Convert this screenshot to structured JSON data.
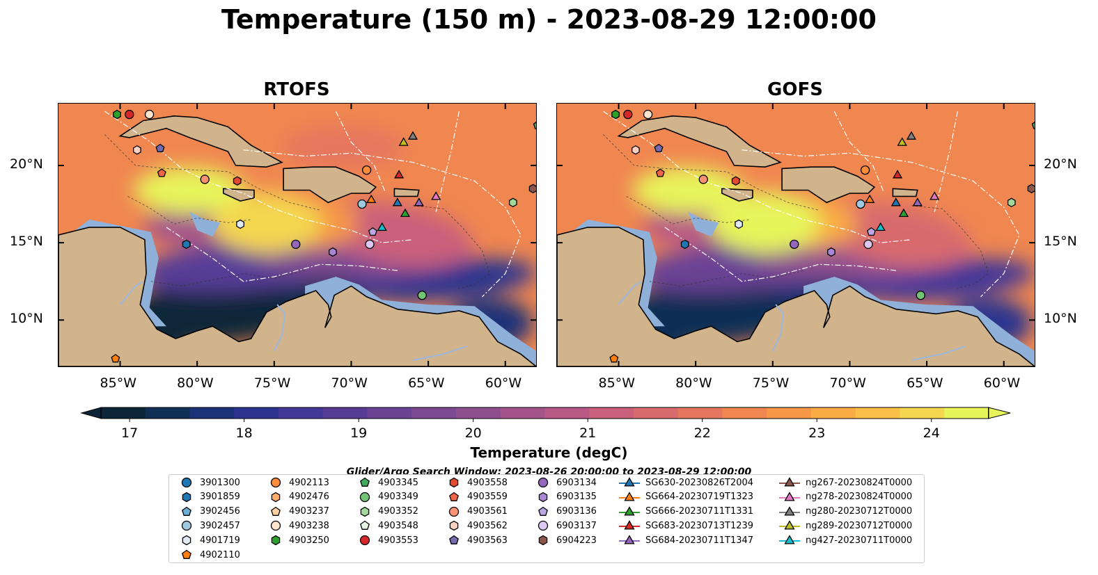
{
  "title": "Temperature (150 m) - 2023-08-29 12:00:00",
  "panels": [
    {
      "title": "RTOFS"
    },
    {
      "title": "GOFS"
    }
  ],
  "axes": {
    "lon_ticks": [
      "85°W",
      "80°W",
      "75°W",
      "70°W",
      "65°W",
      "60°W"
    ],
    "lat_ticks": [
      "20°N",
      "15°N",
      "10°N"
    ],
    "lon_values": [
      -85,
      -80,
      -75,
      -70,
      -65,
      -60
    ],
    "lat_values": [
      20,
      15,
      10
    ],
    "lon_range": [
      -89,
      -58
    ],
    "lat_range": [
      7,
      24
    ]
  },
  "colorbar": {
    "label": "Temperature (degC)",
    "ticks": [
      "17",
      "18",
      "19",
      "20",
      "21",
      "22",
      "23",
      "24"
    ],
    "tick_values": [
      17,
      18,
      19,
      20,
      21,
      22,
      23,
      24
    ],
    "range": [
      16.75,
      24.5
    ],
    "extend": "both",
    "colors": [
      "#0c2638",
      "#102f55",
      "#1c3278",
      "#2c3490",
      "#433898",
      "#573c97",
      "#6a4395",
      "#7c4993",
      "#8f4f8f",
      "#a4548b",
      "#b85a85",
      "#c9617c",
      "#d86b6e",
      "#e6775f",
      "#f08750",
      "#f69847",
      "#f9ab45",
      "#f9bf48",
      "#f4d650",
      "#e7f45a"
    ]
  },
  "search_window": "Glider/Argo Search Window: 2023-08-26 20:00:00 to 2023-08-29 12:00:00",
  "legend": [
    {
      "label": "3901300",
      "marker": "circle",
      "color": "#1f77b4"
    },
    {
      "label": "3901859",
      "marker": "hexagon",
      "color": "#1f77b4"
    },
    {
      "label": "3902456",
      "marker": "pentagon",
      "color": "#6baed6"
    },
    {
      "label": "3902457",
      "marker": "circle",
      "color": "#9ecae1"
    },
    {
      "label": "4901719",
      "marker": "hexagon",
      "color": "#deebf7"
    },
    {
      "label": "4902110",
      "marker": "pentagon",
      "color": "#ff7f0e"
    },
    {
      "label": "4902113",
      "marker": "circle",
      "color": "#fd8d3c"
    },
    {
      "label": "4902476",
      "marker": "hexagon",
      "color": "#fdae6b"
    },
    {
      "label": "4903237",
      "marker": "pentagon",
      "color": "#fdd0a2"
    },
    {
      "label": "4903238",
      "marker": "circle",
      "color": "#fee6ce"
    },
    {
      "label": "4903250",
      "marker": "hexagon",
      "color": "#2ca02c"
    },
    {
      "label": "4903345",
      "marker": "pentagon",
      "color": "#41ab5d"
    },
    {
      "label": "4903349",
      "marker": "circle",
      "color": "#74c476"
    },
    {
      "label": "4903352",
      "marker": "hexagon",
      "color": "#a1d99b"
    },
    {
      "label": "4903548",
      "marker": "pentagon",
      "color": "#e5f5e0"
    },
    {
      "label": "4903553",
      "marker": "circle",
      "color": "#d62728"
    },
    {
      "label": "4903558",
      "marker": "hexagon",
      "color": "#e34a33"
    },
    {
      "label": "4903559",
      "marker": "pentagon",
      "color": "#ef6548"
    },
    {
      "label": "4903561",
      "marker": "circle",
      "color": "#fc9272"
    },
    {
      "label": "4903562",
      "marker": "hexagon",
      "color": "#fdd0c2"
    },
    {
      "label": "4903563",
      "marker": "pentagon",
      "color": "#756bb1"
    },
    {
      "label": "6903134",
      "marker": "circle",
      "color": "#9467bd"
    },
    {
      "label": "6903135",
      "marker": "hexagon",
      "color": "#a987d6"
    },
    {
      "label": "6903136",
      "marker": "pentagon",
      "color": "#bca6e3"
    },
    {
      "label": "6903137",
      "marker": "circle",
      "color": "#dcc8f2"
    },
    {
      "label": "6904223",
      "marker": "hexagon",
      "color": "#8c564b"
    },
    {
      "label": "SG630-20230826T2004",
      "marker": "triangle-line",
      "color": "#1f77b4"
    },
    {
      "label": "SG664-20230719T1323",
      "marker": "triangle-line",
      "color": "#ff7f0e"
    },
    {
      "label": "SG666-20230711T1331",
      "marker": "triangle-line",
      "color": "#2ca02c"
    },
    {
      "label": "SG683-20230713T1239",
      "marker": "triangle-line",
      "color": "#d62728"
    },
    {
      "label": "SG684-20230711T1347",
      "marker": "triangle-line",
      "color": "#9467bd"
    },
    {
      "label": "ng267-20230824T0000",
      "marker": "triangle-line",
      "color": "#8c564b"
    },
    {
      "label": "ng278-20230824T0000",
      "marker": "triangle-line",
      "color": "#e377c2"
    },
    {
      "label": "ng280-20230712T0000",
      "marker": "triangle-line",
      "color": "#7f7f7f"
    },
    {
      "label": "ng289-20230712T0000",
      "marker": "triangle-line",
      "color": "#bcbd22"
    },
    {
      "label": "ng427-20230711T0000",
      "marker": "triangle-line",
      "color": "#17becf"
    }
  ],
  "platforms": [
    {
      "marker": "hexagon",
      "color": "#2ca02c",
      "lon": -85.2,
      "lat": 23.3
    },
    {
      "marker": "circle",
      "color": "#d62728",
      "lon": -84.4,
      "lat": 23.3
    },
    {
      "marker": "circle",
      "color": "#fee6ce",
      "lon": -83.1,
      "lat": 23.3
    },
    {
      "marker": "hexagon",
      "color": "#fdd0c2",
      "lon": -83.9,
      "lat": 21.0
    },
    {
      "marker": "pentagon",
      "color": "#756bb1",
      "lon": -82.4,
      "lat": 21.1
    },
    {
      "marker": "pentagon",
      "color": "#ef6548",
      "lon": -82.3,
      "lat": 19.5
    },
    {
      "marker": "circle",
      "color": "#fc9272",
      "lon": -79.5,
      "lat": 19.1
    },
    {
      "marker": "hexagon",
      "color": "#e34a33",
      "lon": -77.4,
      "lat": 19.0
    },
    {
      "marker": "hexagon",
      "color": "#deebf7",
      "lon": -77.2,
      "lat": 16.2
    },
    {
      "marker": "hexagon",
      "color": "#1f77b4",
      "lon": -80.7,
      "lat": 14.9
    },
    {
      "marker": "pentagon",
      "color": "#ff7f0e",
      "lon": -85.3,
      "lat": 7.5
    },
    {
      "marker": "circle",
      "color": "#9467bd",
      "lon": -73.6,
      "lat": 14.9
    },
    {
      "marker": "hexagon",
      "color": "#a987d6",
      "lon": -71.2,
      "lat": 14.4
    },
    {
      "marker": "circle",
      "color": "#dcc8f2",
      "lon": -68.8,
      "lat": 14.9
    },
    {
      "marker": "pentagon",
      "color": "#bca6e3",
      "lon": -68.6,
      "lat": 15.7
    },
    {
      "marker": "circle",
      "color": "#fd8d3c",
      "lon": -69.0,
      "lat": 19.7
    },
    {
      "marker": "circle",
      "color": "#9ecae1",
      "lon": -69.3,
      "lat": 17.5
    },
    {
      "marker": "circle",
      "color": "#74c476",
      "lon": -65.4,
      "lat": 11.6
    },
    {
      "marker": "hexagon",
      "color": "#a1d99b",
      "lon": -59.5,
      "lat": 17.6
    },
    {
      "marker": "hexagon",
      "color": "#8c564b",
      "lon": -58.2,
      "lat": 18.5
    },
    {
      "marker": "pentagon",
      "color": "#41ab5d",
      "lon": -57.9,
      "lat": 22.6
    },
    {
      "marker": "triangle",
      "color": "#bcbd22",
      "lon": -66.6,
      "lat": 21.5
    },
    {
      "marker": "triangle",
      "color": "#7f7f7f",
      "lon": -66.0,
      "lat": 21.9
    },
    {
      "marker": "triangle",
      "color": "#d62728",
      "lon": -66.9,
      "lat": 19.4
    },
    {
      "marker": "triangle",
      "color": "#ff7f0e",
      "lon": -68.7,
      "lat": 17.8
    },
    {
      "marker": "triangle",
      "color": "#1f77b4",
      "lon": -67.0,
      "lat": 17.6
    },
    {
      "marker": "triangle",
      "color": "#9467bd",
      "lon": -65.6,
      "lat": 17.6
    },
    {
      "marker": "triangle",
      "color": "#e377c2",
      "lon": -64.5,
      "lat": 18.0
    },
    {
      "marker": "triangle",
      "color": "#2ca02c",
      "lon": -66.5,
      "lat": 16.9
    },
    {
      "marker": "triangle",
      "color": "#17becf",
      "lon": -68.0,
      "lat": 16.0
    }
  ]
}
